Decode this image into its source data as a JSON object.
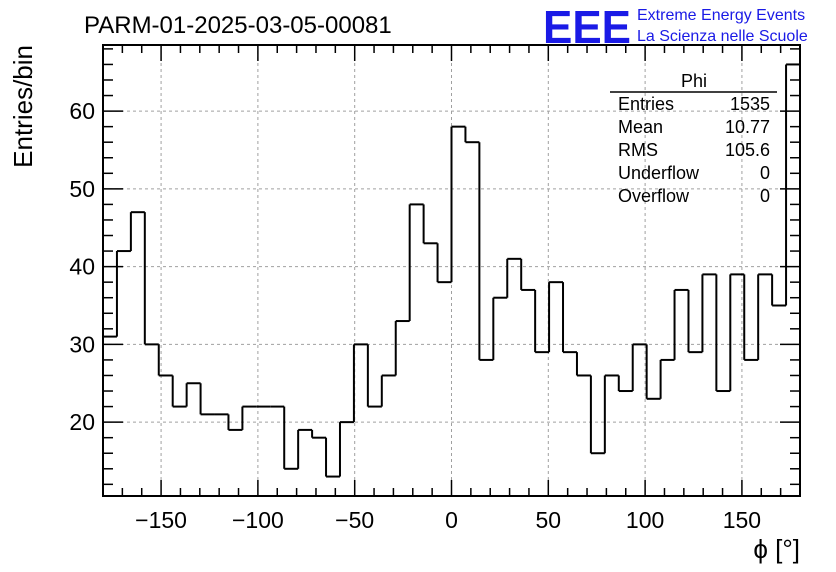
{
  "chart_data": {
    "type": "bar",
    "title": "PARM-01-2025-03-05-00081",
    "xlabel": "ϕ [°]",
    "ylabel": "Entries/bin",
    "xlim": [
      -180,
      180
    ],
    "ylim": [
      10.5,
      68.5
    ],
    "bin_width": 7.2,
    "x_ticks": [
      -150,
      -100,
      -50,
      0,
      50,
      100,
      150
    ],
    "x_tick_labels": [
      "−150",
      "−100",
      "−50",
      "0",
      "50",
      "100",
      "150"
    ],
    "y_ticks": [
      20,
      30,
      40,
      50,
      60
    ],
    "y_tick_labels": [
      "20",
      "30",
      "40",
      "50",
      "60"
    ],
    "grid": true,
    "values": [
      31,
      42,
      47,
      30,
      26,
      22,
      25,
      21,
      21,
      19,
      22,
      22,
      22,
      14,
      19,
      18,
      13,
      20,
      30,
      22,
      26,
      33,
      48,
      43,
      38,
      58,
      56,
      28,
      36,
      41,
      37,
      29,
      38,
      29,
      26,
      16,
      26,
      24,
      30,
      23,
      28,
      37,
      29,
      39,
      24,
      39,
      28,
      39,
      35,
      66
    ],
    "stats_box": {
      "title": "Phi",
      "rows": [
        {
          "label": "Entries",
          "value": "1535"
        },
        {
          "label": "Mean",
          "value": "10.77"
        },
        {
          "label": "RMS",
          "value": "105.6"
        },
        {
          "label": "Underflow",
          "value": "0"
        },
        {
          "label": "Overflow",
          "value": "0"
        }
      ]
    }
  },
  "logo": {
    "text": "EEE",
    "line1": "Extreme Energy Events",
    "line2": "La Scienza nelle Scuole"
  },
  "colors": {
    "histogram": "#000000",
    "grid": "#a0a0a0",
    "logo": "#1a1ae6"
  }
}
